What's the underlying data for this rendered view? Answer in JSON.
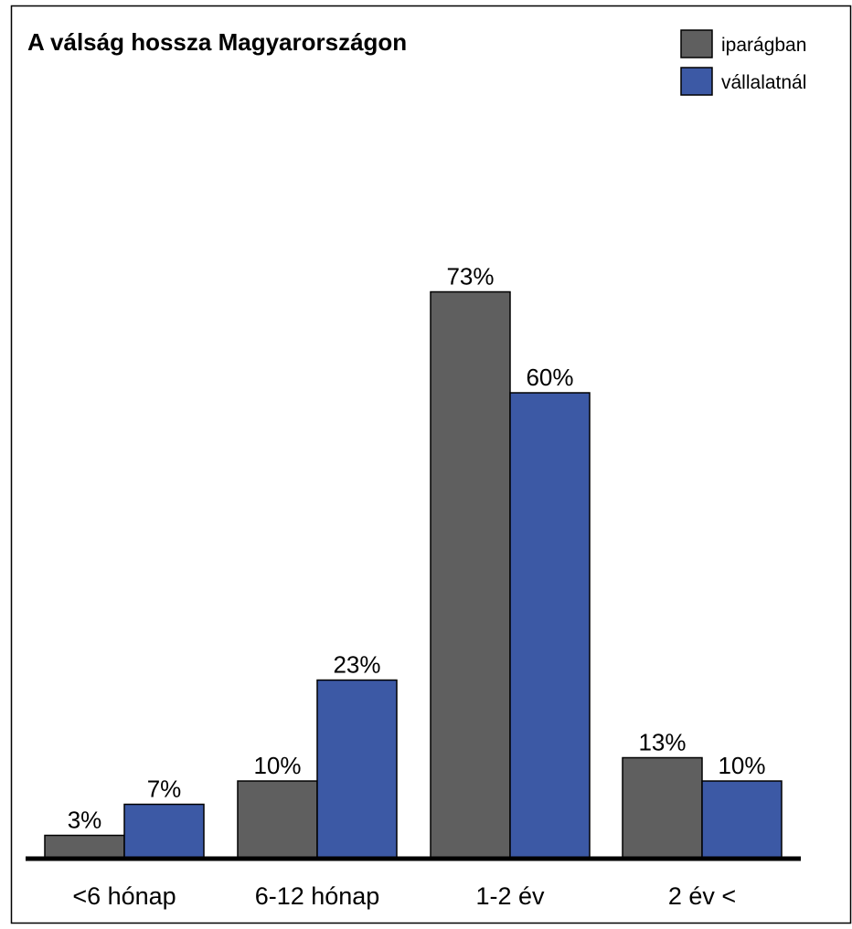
{
  "chart_data": {
    "type": "bar",
    "title": "A válság hossza Magyarországon",
    "categories": [
      "<6 hónap",
      "6-12 hónap",
      "1-2 év",
      "2 év <"
    ],
    "series": [
      {
        "name": "iparágban",
        "values": [
          3,
          10,
          73,
          13
        ],
        "labels": [
          "3%",
          "10%",
          "73%",
          "13%"
        ],
        "color": "#5f5f5f"
      },
      {
        "name": "vállalatnál",
        "values": [
          7,
          23,
          60,
          10
        ],
        "labels": [
          "7%",
          "23%",
          "60%",
          "10%"
        ],
        "color": "#3c59a5"
      }
    ],
    "ylim": [
      0,
      100
    ],
    "grid": false,
    "legend": "top-right"
  }
}
